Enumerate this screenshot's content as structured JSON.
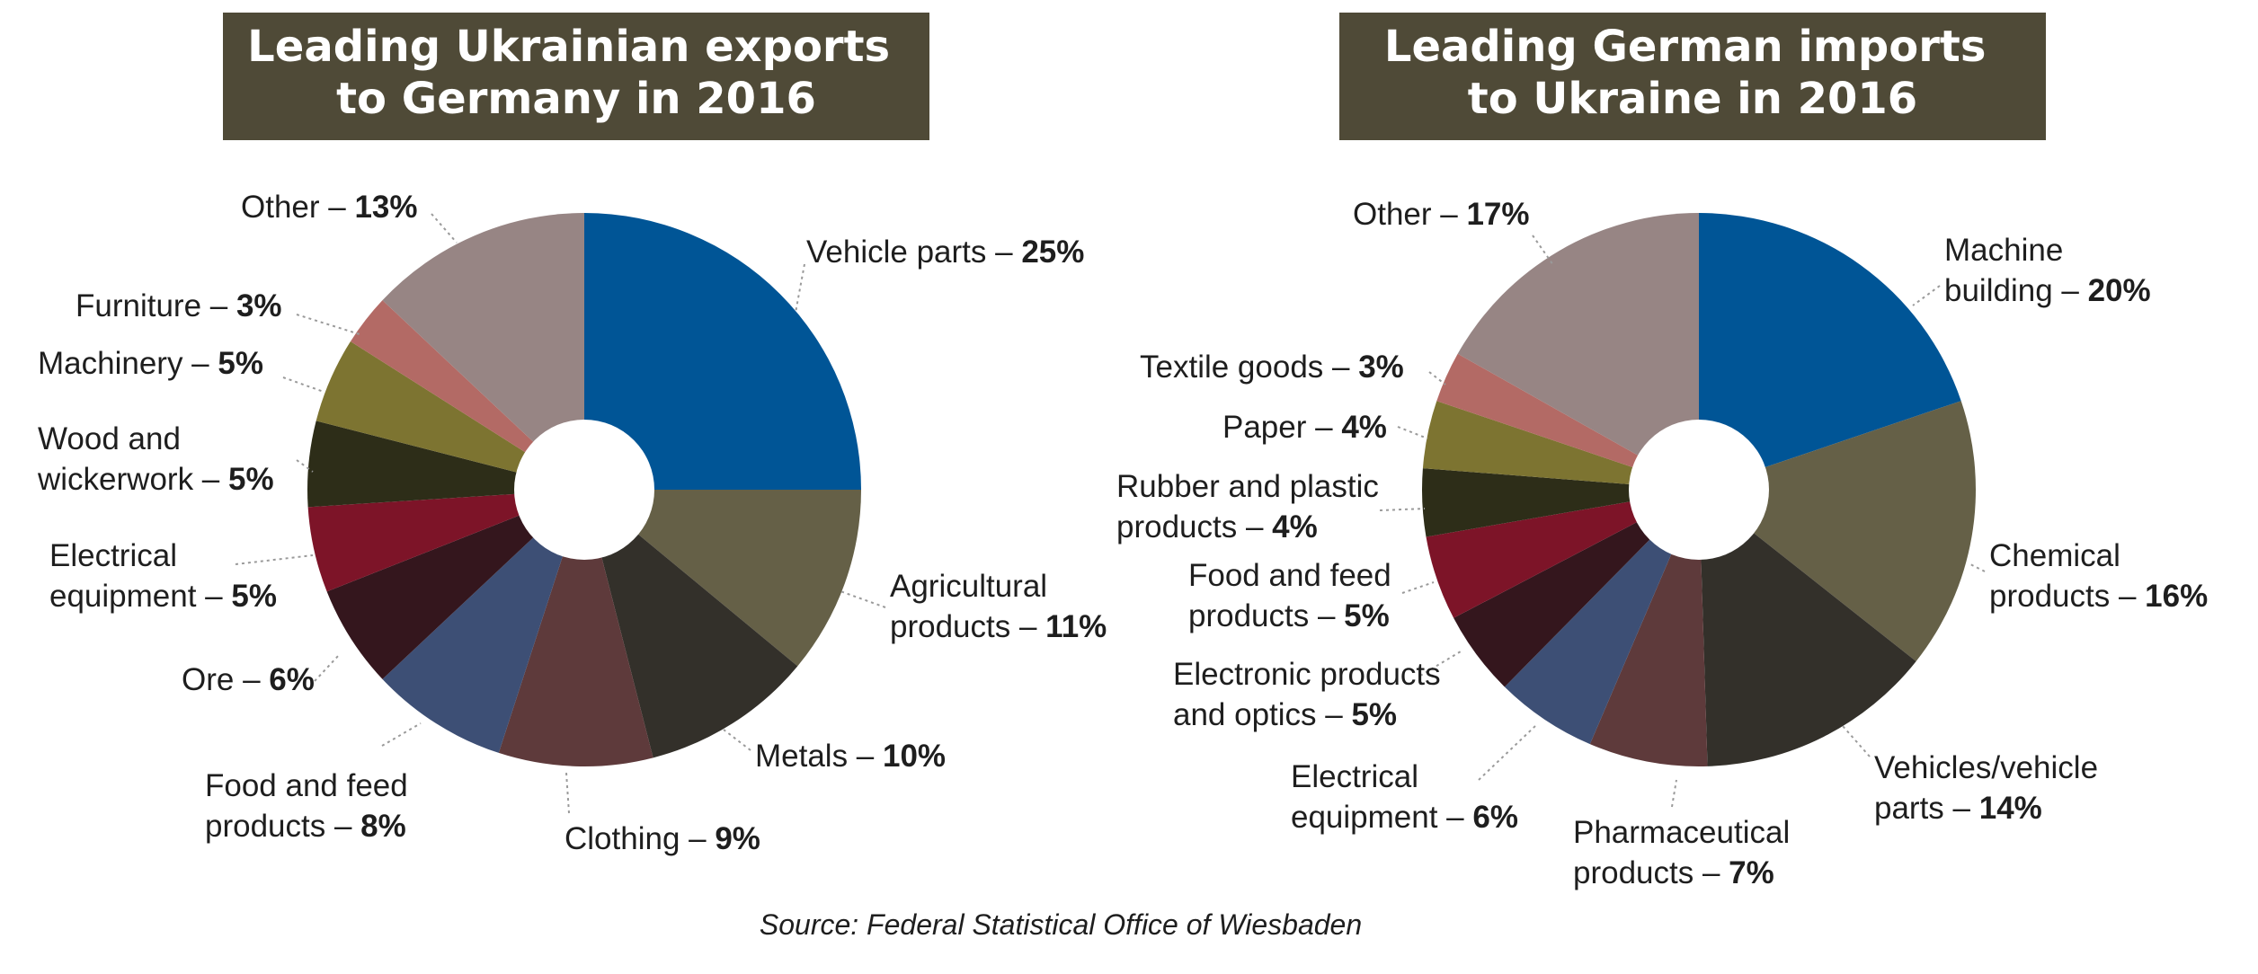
{
  "chart_data": [
    {
      "type": "pie",
      "title_lines": [
        "Leading Ukrainian exports",
        "to Germany in 2016"
      ],
      "slices": [
        {
          "label_lines": [
            "Vehicle parts – "
          ],
          "value": 25,
          "value_label": "25%",
          "color": "#005596"
        },
        {
          "label_lines": [
            "Agricultural",
            "products – "
          ],
          "value": 11,
          "value_label": "11%",
          "color": "#656047"
        },
        {
          "label_lines": [
            "Metals – "
          ],
          "value": 10,
          "value_label": "10%",
          "color": "#33302a"
        },
        {
          "label_lines": [
            "Clothing – "
          ],
          "value": 9,
          "value_label": "9%",
          "color": "#5e3a3b"
        },
        {
          "label_lines": [
            "Food and feed",
            "products – "
          ],
          "value": 8,
          "value_label": "8%",
          "color": "#3d4f75"
        },
        {
          "label_lines": [
            "Ore – "
          ],
          "value": 6,
          "value_label": "6%",
          "color": "#34161d"
        },
        {
          "label_lines": [
            "Electrical",
            "equipment – "
          ],
          "value": 5,
          "value_label": "5%",
          "color": "#7d1428"
        },
        {
          "label_lines": [
            "Wood and",
            "wickerwork – "
          ],
          "value": 5,
          "value_label": "5%",
          "color": "#2d2d18"
        },
        {
          "label_lines": [
            "Machinery – "
          ],
          "value": 5,
          "value_label": "5%",
          "color": "#7d7431"
        },
        {
          "label_lines": [
            "Furniture – "
          ],
          "value": 3,
          "value_label": "3%",
          "color": "#b36a65"
        },
        {
          "label_lines": [
            "Other – "
          ],
          "value": 13,
          "value_label": "13%",
          "color": "#978584"
        }
      ]
    },
    {
      "type": "pie",
      "title_lines": [
        "Leading German imports",
        "to Ukraine in 2016"
      ],
      "slices": [
        {
          "label_lines": [
            "Machine",
            "building – "
          ],
          "value": 20,
          "value_label": "20%",
          "color": "#005596"
        },
        {
          "label_lines": [
            "Chemical",
            "products – "
          ],
          "value": 16,
          "value_label": "16%",
          "color": "#656047"
        },
        {
          "label_lines": [
            "Vehicles/vehicle",
            "parts – "
          ],
          "value": 14,
          "value_label": "14%",
          "color": "#33302a"
        },
        {
          "label_lines": [
            "Pharmaceutical",
            "products – "
          ],
          "value": 7,
          "value_label": "7%",
          "color": "#5e3a3b"
        },
        {
          "label_lines": [
            "Electrical",
            "equipment – "
          ],
          "value": 6,
          "value_label": "6%",
          "color": "#3d4f75"
        },
        {
          "label_lines": [
            "Electronic products",
            "and optics – "
          ],
          "value": 5,
          "value_label": "5%",
          "color": "#34161d"
        },
        {
          "label_lines": [
            "Food and feed",
            "products – "
          ],
          "value": 5,
          "value_label": "5%",
          "color": "#7d1428"
        },
        {
          "label_lines": [
            "Rubber and plastic",
            "products – "
          ],
          "value": 4,
          "value_label": "4%",
          "color": "#2d2d18"
        },
        {
          "label_lines": [
            "Paper – "
          ],
          "value": 4,
          "value_label": "4%",
          "color": "#7d7431"
        },
        {
          "label_lines": [
            "Textile goods – "
          ],
          "value": 3,
          "value_label": "3%",
          "color": "#b36a65"
        },
        {
          "label_lines": [
            "Other – "
          ],
          "value": 17,
          "value_label": "17%",
          "color": "#978584"
        }
      ]
    }
  ],
  "source": "Source: Federal Statistical Office of Wiesbaden"
}
